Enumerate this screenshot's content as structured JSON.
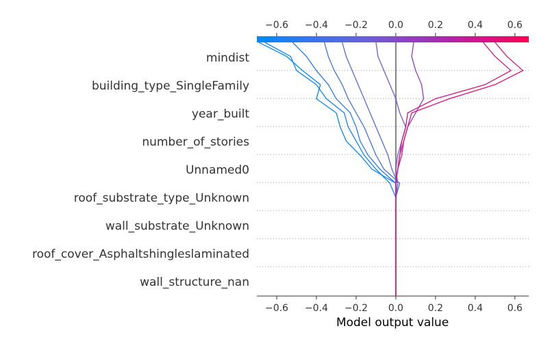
{
  "chart_data": {
    "type": "decision_plot",
    "title": "",
    "xlabel": "Model output value",
    "ylabel": "",
    "xlim": [
      -0.7,
      0.67
    ],
    "base_value": 0.0,
    "x_ticks": [
      "−0.6",
      "−0.4",
      "−0.2",
      "0.0",
      "0.2",
      "0.4",
      "0.6"
    ],
    "x_tick_values": [
      -0.6,
      -0.4,
      -0.2,
      0.0,
      0.2,
      0.4,
      0.6
    ],
    "features": [
      "mindist",
      "building_type_SingleFamily",
      "year_built",
      "number_of_stories",
      "Unnamed0",
      "roof_substrate_type_Unknown",
      "wall_substrate_Unknown",
      "roof_cover_Asphaltshingleslaminated",
      "wall_structure_nan"
    ],
    "colorbar": {
      "gradient": [
        "#008bfb",
        "#6a5fdb",
        "#b024b0",
        "#ff0052"
      ],
      "range": [
        -0.7,
        0.67
      ]
    },
    "color_blue": "#1e88e5",
    "color_red": "#ff0d57",
    "series": [
      {
        "values": [
          -0.55,
          -0.47,
          -0.38,
          -0.4,
          -0.3,
          -0.28,
          -0.25,
          -0.18,
          -0.12,
          0.0,
          0.0,
          0.0,
          0.0,
          0.0,
          0.0,
          0.0,
          0.0,
          0.0,
          -0.69
        ]
      },
      {
        "values": [
          -0.53,
          -0.5,
          -0.4,
          -0.35,
          -0.26,
          -0.24,
          -0.2,
          -0.16,
          -0.1,
          -0.03,
          0.0,
          0.0,
          0.0,
          0.0,
          0.0,
          0.0,
          0.0,
          0.0,
          -0.66
        ]
      },
      {
        "values": [
          -0.45,
          -0.4,
          -0.34,
          -0.3,
          -0.23,
          -0.2,
          -0.18,
          -0.14,
          -0.08,
          0.0,
          0.0,
          0.0,
          0.0,
          0.0,
          0.0,
          0.0,
          0.0,
          0.0,
          -0.52
        ]
      },
      {
        "values": [
          -0.34,
          -0.31,
          -0.27,
          -0.24,
          -0.2,
          -0.16,
          -0.13,
          -0.1,
          -0.06,
          0.02,
          0.0,
          0.0,
          0.0,
          0.0,
          0.0,
          0.0,
          0.0,
          0.0,
          -0.36
        ]
      },
      {
        "values": [
          -0.25,
          -0.22,
          -0.19,
          -0.16,
          -0.13,
          -0.1,
          -0.07,
          -0.04,
          -0.02,
          0.01,
          0.0,
          0.0,
          0.0,
          0.0,
          0.0,
          0.0,
          0.0,
          0.0,
          -0.27
        ]
      },
      {
        "values": [
          -0.09,
          -0.06,
          -0.03,
          0.0,
          0.02,
          0.05,
          0.03,
          0.01,
          0.0,
          0.01,
          0.0,
          0.0,
          0.0,
          0.0,
          0.0,
          0.0,
          0.0,
          0.0,
          -0.1
        ]
      },
      {
        "values": [
          0.08,
          0.1,
          0.13,
          0.14,
          0.1,
          0.06,
          0.04,
          0.02,
          0.01,
          0.0,
          0.0,
          0.0,
          0.0,
          0.0,
          0.0,
          0.0,
          0.0,
          0.0,
          0.09
        ]
      },
      {
        "values": [
          0.5,
          0.58,
          0.45,
          0.2,
          0.06,
          0.05,
          0.03,
          0.02,
          0.01,
          0.0,
          0.0,
          0.0,
          0.0,
          0.0,
          0.0,
          0.0,
          0.0,
          0.0,
          0.44
        ]
      },
      {
        "values": [
          0.56,
          0.64,
          0.5,
          0.27,
          0.08,
          0.06,
          0.04,
          0.03,
          0.01,
          0.0,
          0.0,
          0.0,
          0.0,
          0.0,
          0.0,
          0.0,
          0.0,
          0.0,
          0.5
        ]
      }
    ]
  }
}
